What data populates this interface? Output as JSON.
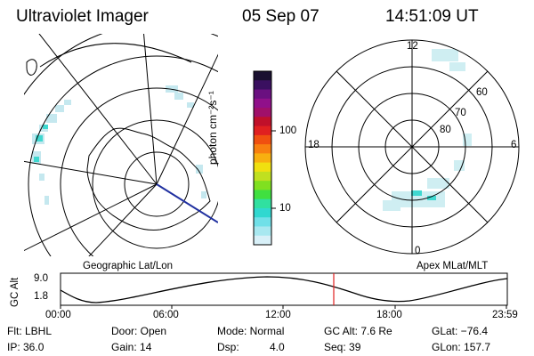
{
  "header": {
    "title": "Ultraviolet Imager",
    "date": "05 Sep 07",
    "time": "14:51:09 UT"
  },
  "colorbar": {
    "label": "photon cm⁻²s⁻¹",
    "ticks": [
      "100",
      "10"
    ],
    "colors": [
      "#1a1030",
      "#3a1060",
      "#6a1080",
      "#90108a",
      "#a0106a",
      "#c0102a",
      "#e02020",
      "#f05010",
      "#f88010",
      "#f8b010",
      "#f0e010",
      "#c0e020",
      "#80e020",
      "#40e040",
      "#30e0a0",
      "#30d8d0",
      "#70e0e8",
      "#a8e8f0",
      "#d8f0f8"
    ],
    "bar_color_name": "log-scale"
  },
  "left_map": {
    "caption": "Geographic Lat/Lon"
  },
  "right_map": {
    "caption": "Apex MLat/MLT",
    "mlt_labels": {
      "top": "12",
      "left": "18",
      "right": "6",
      "bottom": "0"
    },
    "lat_labels": [
      "60",
      "70",
      "80"
    ]
  },
  "timeline": {
    "axis_label": "GC Alt",
    "y_ticks": [
      "9.0",
      "1.8"
    ],
    "x_ticks": [
      "00:00",
      "06:00",
      "12:00",
      "18:00",
      "23:59"
    ],
    "current_marker_color": "#e02020"
  },
  "info": {
    "flt": "Flt: LBHL",
    "ip": "IP: 36.0",
    "door": "Door: Open",
    "gain": "Gain: 14",
    "mode": "Mode: Normal",
    "dsp": "Dsp:",
    "dsp_val": "4.0",
    "gcalt": "GC Alt: 7.6 Re",
    "seq": "Seq: 39",
    "glat": "GLat: −76.4",
    "glon": "GLon: 157.7"
  }
}
